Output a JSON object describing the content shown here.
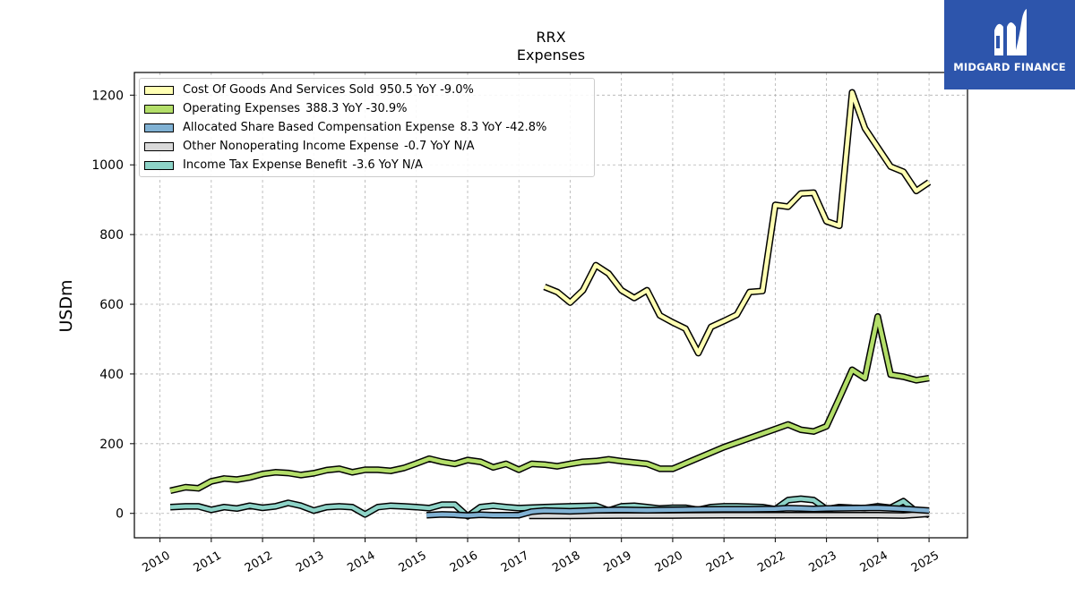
{
  "brand": {
    "name": "MIDGARD FINANCE",
    "logo_icon": "midgard-logo-icon",
    "color": "#2d55ac"
  },
  "chart_data": {
    "type": "line",
    "title": "RRX",
    "subtitle": "Expenses",
    "ylabel": "USDm",
    "xlabel": "",
    "ylim": [
      -70,
      1265
    ],
    "xlim": [
      2009.5,
      2025.75
    ],
    "yticks": [
      0,
      200,
      400,
      600,
      800,
      1000,
      1200
    ],
    "xticks": [
      "2010",
      "2011",
      "2012",
      "2013",
      "2014",
      "2015",
      "2016",
      "2017",
      "2018",
      "2019",
      "2020",
      "2021",
      "2022",
      "2023",
      "2024",
      "2025"
    ],
    "grid": true,
    "legend_position": "top-left",
    "series": [
      {
        "name": "Cost Of Goods And Services Sold",
        "latest": "950.5",
        "yoy": "YoY -9.0%",
        "color": "#ffffb3",
        "points": [
          [
            2017.5,
            650
          ],
          [
            2017.75,
            635
          ],
          [
            2018.0,
            605
          ],
          [
            2018.25,
            640
          ],
          [
            2018.5,
            712
          ],
          [
            2018.75,
            688
          ],
          [
            2019.0,
            640
          ],
          [
            2019.25,
            618
          ],
          [
            2019.5,
            640
          ],
          [
            2019.75,
            568
          ],
          [
            2020.0,
            548
          ],
          [
            2020.25,
            530
          ],
          [
            2020.5,
            460
          ],
          [
            2020.75,
            535
          ],
          [
            2021.0,
            552
          ],
          [
            2021.25,
            570
          ],
          [
            2021.5,
            635
          ],
          [
            2021.75,
            638
          ],
          [
            2022.0,
            885
          ],
          [
            2022.25,
            880
          ],
          [
            2022.5,
            918
          ],
          [
            2022.75,
            920
          ],
          [
            2023.0,
            838
          ],
          [
            2023.25,
            825
          ],
          [
            2023.5,
            1208
          ],
          [
            2023.75,
            1105
          ],
          [
            2024.0,
            1050
          ],
          [
            2024.25,
            995
          ],
          [
            2024.5,
            980
          ],
          [
            2024.75,
            925
          ],
          [
            2025.0,
            950
          ]
        ]
      },
      {
        "name": "Operating Expenses",
        "latest": "388.3",
        "yoy": "YoY -30.9%",
        "color": "#b3de69",
        "points": [
          [
            2010.2,
            65
          ],
          [
            2010.5,
            75
          ],
          [
            2010.75,
            72
          ],
          [
            2011.0,
            92
          ],
          [
            2011.25,
            100
          ],
          [
            2011.5,
            97
          ],
          [
            2011.75,
            103
          ],
          [
            2012.0,
            113
          ],
          [
            2012.25,
            118
          ],
          [
            2012.5,
            116
          ],
          [
            2012.75,
            110
          ],
          [
            2013.0,
            115
          ],
          [
            2013.25,
            124
          ],
          [
            2013.5,
            128
          ],
          [
            2013.75,
            118
          ],
          [
            2014.0,
            125
          ],
          [
            2014.25,
            125
          ],
          [
            2014.5,
            122
          ],
          [
            2014.75,
            130
          ],
          [
            2015.0,
            143
          ],
          [
            2015.25,
            157
          ],
          [
            2015.5,
            148
          ],
          [
            2015.75,
            142
          ],
          [
            2016.0,
            153
          ],
          [
            2016.25,
            148
          ],
          [
            2016.5,
            132
          ],
          [
            2016.75,
            142
          ],
          [
            2017.0,
            125
          ],
          [
            2017.25,
            142
          ],
          [
            2017.5,
            140
          ],
          [
            2017.75,
            135
          ],
          [
            2018.0,
            142
          ],
          [
            2018.25,
            148
          ],
          [
            2018.5,
            150
          ],
          [
            2018.75,
            155
          ],
          [
            2019.0,
            150
          ],
          [
            2019.25,
            146
          ],
          [
            2019.5,
            142
          ],
          [
            2019.75,
            128
          ],
          [
            2020.0,
            128
          ],
          [
            2021.0,
            190
          ],
          [
            2022.0,
            242
          ],
          [
            2022.25,
            255
          ],
          [
            2022.5,
            240
          ],
          [
            2022.75,
            235
          ],
          [
            2023.0,
            250
          ],
          [
            2023.25,
            330
          ],
          [
            2023.5,
            412
          ],
          [
            2023.75,
            388
          ],
          [
            2024.0,
            565
          ],
          [
            2024.25,
            398
          ],
          [
            2024.5,
            392
          ],
          [
            2024.75,
            382
          ],
          [
            2025.0,
            388
          ]
        ]
      },
      {
        "name": "Allocated Share Based Compensation Expense",
        "latest": "8.3",
        "yoy": "YoY -42.8%",
        "color": "#80b1d3",
        "points": [
          [
            2015.2,
            -5
          ],
          [
            2015.5,
            -3
          ],
          [
            2015.75,
            -4
          ],
          [
            2016.0,
            -6
          ],
          [
            2016.25,
            -4
          ],
          [
            2016.5,
            -5
          ],
          [
            2017.0,
            -5
          ],
          [
            2017.25,
            5
          ],
          [
            2017.5,
            8
          ],
          [
            2018.0,
            6
          ],
          [
            2018.5,
            9
          ],
          [
            2019.0,
            10
          ],
          [
            2019.5,
            9
          ],
          [
            2020.0,
            10
          ],
          [
            2020.5,
            11
          ],
          [
            2021.0,
            12
          ],
          [
            2021.5,
            12
          ],
          [
            2022.0,
            13
          ],
          [
            2022.25,
            15
          ],
          [
            2022.5,
            14
          ],
          [
            2022.75,
            13
          ],
          [
            2023.0,
            14
          ],
          [
            2023.5,
            15
          ],
          [
            2024.0,
            16
          ],
          [
            2024.5,
            13
          ],
          [
            2025.0,
            8
          ]
        ]
      },
      {
        "name": "Other Nonoperating Income Expense",
        "latest": "-0.7",
        "yoy": "YoY N/A",
        "color": "#d9d9d9",
        "points": [
          [
            2017.2,
            -7
          ],
          [
            2018.0,
            -7
          ],
          [
            2019.0,
            -6
          ],
          [
            2020.0,
            -6
          ],
          [
            2021.0,
            -5
          ],
          [
            2022.0,
            -5
          ],
          [
            2023.0,
            -5
          ],
          [
            2024.0,
            -5
          ],
          [
            2024.5,
            -6
          ],
          [
            2024.75,
            -4
          ],
          [
            2025.0,
            -1
          ]
        ]
      },
      {
        "name": "Income Tax Expense Benefit",
        "latest": "-3.6",
        "yoy": "YoY N/A",
        "color": "#8dd3c7",
        "points": [
          [
            2010.2,
            18
          ],
          [
            2010.5,
            20
          ],
          [
            2010.75,
            20
          ],
          [
            2011.0,
            10
          ],
          [
            2011.25,
            18
          ],
          [
            2011.5,
            14
          ],
          [
            2011.75,
            22
          ],
          [
            2012.0,
            16
          ],
          [
            2012.25,
            20
          ],
          [
            2012.5,
            30
          ],
          [
            2012.75,
            22
          ],
          [
            2013.0,
            8
          ],
          [
            2013.25,
            18
          ],
          [
            2013.5,
            20
          ],
          [
            2013.75,
            18
          ],
          [
            2014.0,
            -3
          ],
          [
            2014.25,
            18
          ],
          [
            2014.5,
            22
          ],
          [
            2014.75,
            20
          ],
          [
            2015.0,
            18
          ],
          [
            2015.25,
            15
          ],
          [
            2015.5,
            25
          ],
          [
            2015.75,
            25
          ],
          [
            2016.0,
            -8
          ],
          [
            2016.25,
            18
          ],
          [
            2016.5,
            22
          ],
          [
            2016.75,
            18
          ],
          [
            2017.0,
            15
          ],
          [
            2017.5,
            18
          ],
          [
            2018.0,
            20
          ],
          [
            2018.5,
            22
          ],
          [
            2018.75,
            8
          ],
          [
            2019.0,
            20
          ],
          [
            2019.25,
            22
          ],
          [
            2019.5,
            18
          ],
          [
            2019.75,
            14
          ],
          [
            2020.0,
            16
          ],
          [
            2020.25,
            16
          ],
          [
            2020.5,
            10
          ],
          [
            2020.75,
            18
          ],
          [
            2021.0,
            20
          ],
          [
            2021.25,
            20
          ],
          [
            2021.75,
            18
          ],
          [
            2022.0,
            12
          ],
          [
            2022.25,
            38
          ],
          [
            2022.5,
            42
          ],
          [
            2022.75,
            38
          ],
          [
            2023.0,
            12
          ],
          [
            2023.25,
            18
          ],
          [
            2023.5,
            16
          ],
          [
            2023.75,
            15
          ],
          [
            2024.0,
            20
          ],
          [
            2024.25,
            16
          ],
          [
            2024.5,
            35
          ],
          [
            2024.75,
            5
          ],
          [
            2025.0,
            -4
          ]
        ]
      }
    ]
  }
}
